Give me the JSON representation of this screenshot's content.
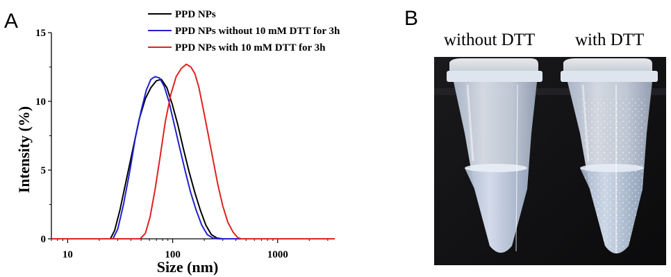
{
  "panel_a_label": "A",
  "panel_b_label": "B",
  "chart_data": {
    "type": "line",
    "title": "",
    "xlabel": "Size (nm)",
    "ylabel": "Intensity (%)",
    "xscale": "log",
    "xlim": [
      7,
      3500
    ],
    "ylim": [
      0,
      15
    ],
    "xticks": [
      10,
      100,
      1000
    ],
    "xtick_labels": [
      "10",
      "100",
      "1000"
    ],
    "yticks": [
      0,
      5,
      10,
      15
    ],
    "ytick_labels": [
      "0",
      "5",
      "10",
      "15"
    ],
    "grid": false,
    "legend_position": "top-center",
    "series": [
      {
        "name": "PPD NPs",
        "color": "#000000",
        "x": [
          7,
          25.5,
          28,
          31.5,
          36,
          42,
          48,
          55,
          62,
          70,
          78,
          88,
          99,
          112,
          126,
          143,
          162,
          183,
          207,
          234,
          265,
          300,
          3500
        ],
        "y": [
          0,
          0,
          0.6,
          2.1,
          4.2,
          6.6,
          8.7,
          10.2,
          11.0,
          11.5,
          11.6,
          11.0,
          9.8,
          8.3,
          6.6,
          4.9,
          3.4,
          2.1,
          1.0,
          0.3,
          0.05,
          0,
          0
        ]
      },
      {
        "name": "PPD NPs without 10 mM DTT for 3h",
        "color": "#1f1fcf",
        "x": [
          7,
          27,
          30,
          34,
          39,
          44,
          50,
          56,
          62,
          68,
          75,
          83,
          92,
          103,
          116,
          131,
          148,
          167,
          189,
          214,
          242,
          274,
          300,
          3500
        ],
        "y": [
          0,
          0,
          0.7,
          2.5,
          4.9,
          7.3,
          9.3,
          10.8,
          11.6,
          11.8,
          11.7,
          11.1,
          10.0,
          8.4,
          6.7,
          5.0,
          3.4,
          2.1,
          1.0,
          0.3,
          0.05,
          0,
          0,
          0
        ]
      },
      {
        "name": "PPD NPs with 10 mM DTT for 3h",
        "color": "#e02020",
        "x": [
          7,
          49,
          55,
          61,
          68,
          76,
          85,
          96,
          108,
          121,
          135,
          149,
          163,
          178,
          196,
          218,
          243,
          270,
          300,
          335,
          375,
          415,
          450,
          3500
        ],
        "y": [
          0,
          0,
          0.4,
          1.6,
          3.6,
          6.0,
          8.5,
          10.5,
          11.8,
          12.4,
          12.7,
          12.5,
          12.0,
          11.0,
          9.4,
          7.6,
          5.7,
          3.9,
          2.4,
          1.2,
          0.5,
          0.1,
          0,
          0
        ]
      }
    ]
  },
  "photo": {
    "left_caption": "without DTT",
    "right_caption": "with DTT"
  }
}
